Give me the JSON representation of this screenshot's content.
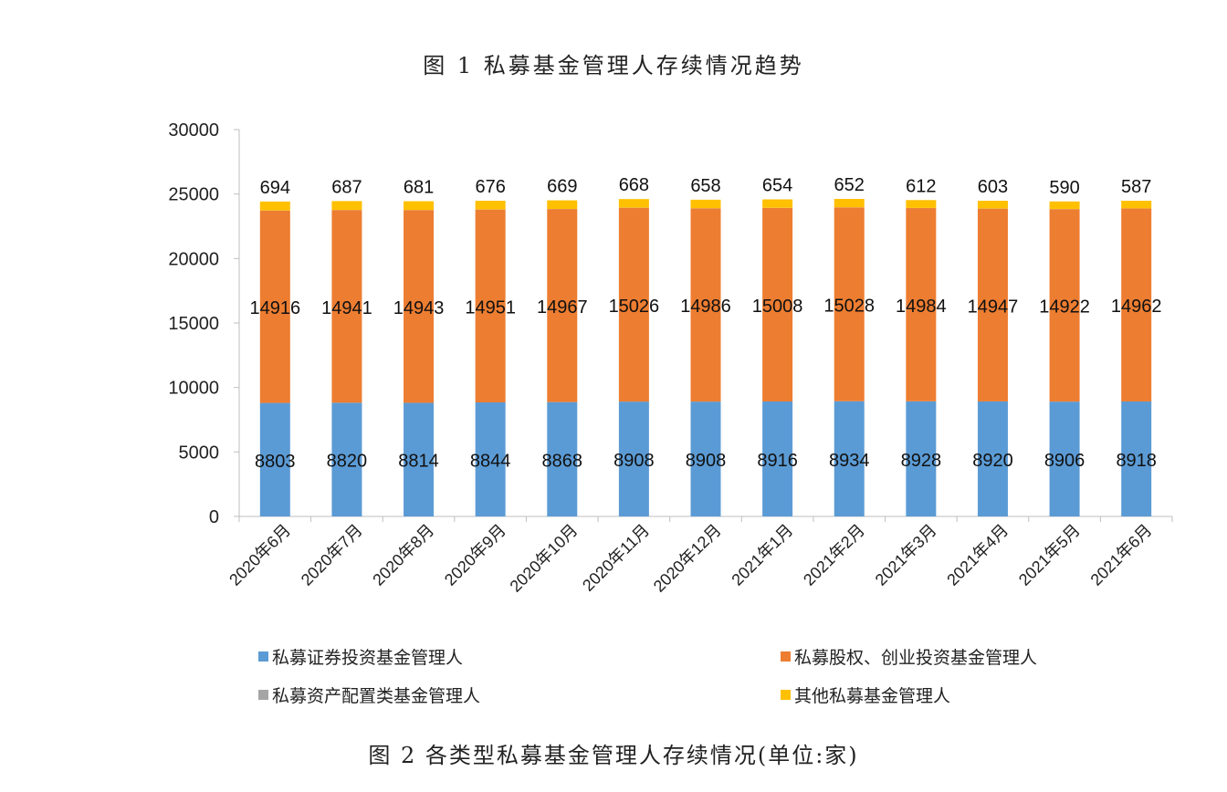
{
  "figure_top_caption": "图 1  私募基金管理人存续情况趋势",
  "figure_bottom_caption": "图 2  各类型私募基金管理人存续情况(单位:家)",
  "colors": {
    "securities": "#5B9BD5",
    "equity_vc": "#ED7D31",
    "asset_allocation": "#A5A5A5",
    "other": "#FFC000"
  },
  "chart_data": {
    "type": "bar",
    "stacked": true,
    "categories": [
      "2020年6月",
      "2020年7月",
      "2020年8月",
      "2020年9月",
      "2020年10月",
      "2020年11月",
      "2020年12月",
      "2021年1月",
      "2021年2月",
      "2021年3月",
      "2021年4月",
      "2021年5月",
      "2021年6月"
    ],
    "series": [
      {
        "name": "私募证券投资基金管理人",
        "color": "#5B9BD5",
        "values": [
          8803,
          8820,
          8814,
          8844,
          8868,
          8908,
          8908,
          8916,
          8934,
          8928,
          8920,
          8906,
          8918
        ],
        "labels_shown": true
      },
      {
        "name": "私募股权、创业投资基金管理人",
        "color": "#ED7D31",
        "values": [
          14916,
          14941,
          14943,
          14951,
          14967,
          15026,
          14986,
          15008,
          15028,
          14984,
          14947,
          14922,
          14962
        ],
        "labels_shown": true
      },
      {
        "name": "私募资产配置类基金管理人",
        "color": "#A5A5A5",
        "values": [
          6,
          6,
          7,
          8,
          8,
          9,
          9,
          9,
          9,
          9,
          9,
          9,
          9
        ],
        "labels_shown": false
      },
      {
        "name": "其他私募基金管理人",
        "color": "#FFC000",
        "values": [
          694,
          687,
          681,
          676,
          669,
          668,
          658,
          654,
          652,
          612,
          603,
          590,
          587
        ],
        "labels_shown": true
      }
    ],
    "ylim": [
      0,
      30000
    ],
    "yticks": [
      0,
      5000,
      10000,
      15000,
      20000,
      25000,
      30000
    ],
    "xlabel": "",
    "ylabel": "",
    "grid": false,
    "legend_position": "bottom"
  }
}
